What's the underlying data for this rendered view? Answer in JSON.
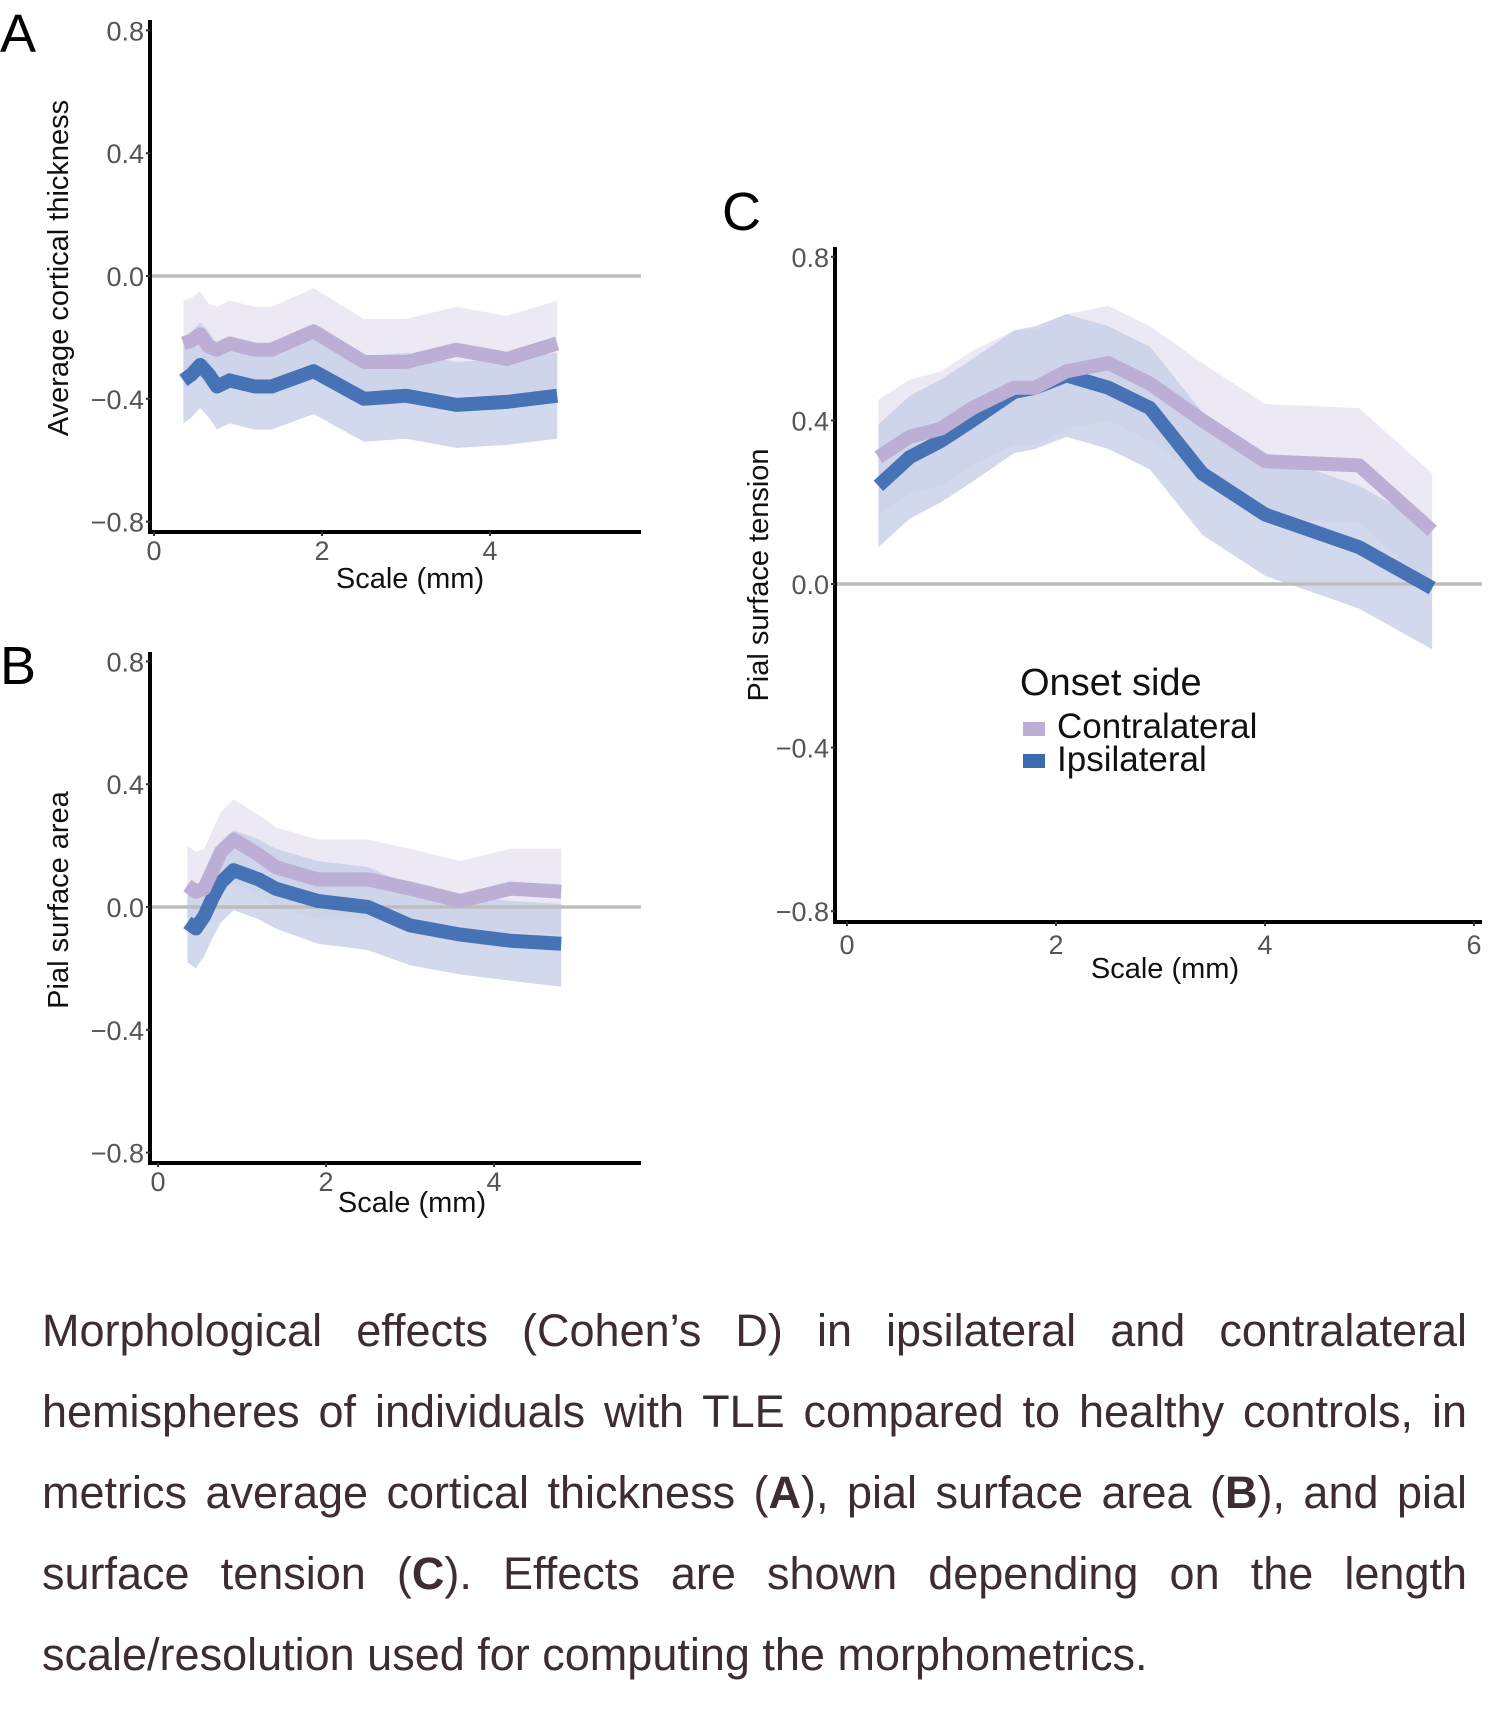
{
  "legend": {
    "title": "Onset side",
    "items": [
      {
        "label": "Contralateral",
        "color": "#bcaed4"
      },
      {
        "label": "Ipsilateral",
        "color": "#3a6ab0"
      }
    ]
  },
  "colors": {
    "contralateral_line": "#bcaed4",
    "ipsilateral_line": "#3a6ab0",
    "contralateral_band": "#e9e5f3",
    "ipsilateral_band": "#c4cce6",
    "zero_line": "#bdbdbd",
    "axis": "#000000"
  },
  "caption": {
    "parts": [
      {
        "text": "Morphological effects (Cohen’s D) in ipsilateral and contralateral hemispheres of individuals with TLE compared to healthy controls, in metrics average cortical thickness (",
        "bold": false
      },
      {
        "text": "A",
        "bold": true
      },
      {
        "text": "), pial surface area (",
        "bold": false
      },
      {
        "text": "B",
        "bold": true
      },
      {
        "text": "), and pial surface tension (",
        "bold": false
      },
      {
        "text": "C",
        "bold": true
      },
      {
        "text": "). Effects are shown depending on the length scale/resolution used for computing  the morphometrics.",
        "bold": false
      }
    ]
  },
  "chart_data": [
    {
      "panel": "A",
      "type": "line",
      "title": "",
      "xlabel": "Scale (mm)",
      "ylabel": "Average cortical thickness",
      "xlim": [
        0,
        5.7
      ],
      "ylim": [
        -0.8,
        0.8
      ],
      "xticks": [
        0,
        2,
        4
      ],
      "xtick_labels": [
        "0",
        "2",
        "4"
      ],
      "yticks": [
        0.8,
        0.4,
        0.0,
        -0.4,
        -0.8
      ],
      "ytick_labels": [
        "0.8",
        "0.4",
        "0.0",
        "−0.4",
        "−0.8"
      ],
      "reference_line": 0.0,
      "grid": false,
      "x": [
        0.35,
        0.45,
        0.55,
        0.65,
        0.75,
        0.9,
        1.2,
        1.4,
        1.9,
        2.5,
        3.0,
        3.6,
        4.2,
        4.8
      ],
      "series": [
        {
          "name": "Contralateral",
          "values": [
            -0.22,
            -0.21,
            -0.19,
            -0.23,
            -0.24,
            -0.22,
            -0.24,
            -0.24,
            -0.18,
            -0.28,
            -0.28,
            -0.24,
            -0.27,
            -0.22
          ],
          "lower": [
            -0.36,
            -0.35,
            -0.33,
            -0.37,
            -0.38,
            -0.36,
            -0.38,
            -0.38,
            -0.32,
            -0.42,
            -0.42,
            -0.38,
            -0.41,
            -0.36
          ],
          "upper": [
            -0.08,
            -0.07,
            -0.05,
            -0.09,
            -0.1,
            -0.08,
            -0.1,
            -0.1,
            -0.04,
            -0.14,
            -0.14,
            -0.1,
            -0.13,
            -0.08
          ]
        },
        {
          "name": "Ipsilateral",
          "values": [
            -0.34,
            -0.32,
            -0.29,
            -0.32,
            -0.36,
            -0.34,
            -0.36,
            -0.36,
            -0.31,
            -0.4,
            -0.39,
            -0.42,
            -0.41,
            -0.39
          ],
          "lower": [
            -0.48,
            -0.46,
            -0.43,
            -0.46,
            -0.5,
            -0.48,
            -0.5,
            -0.5,
            -0.45,
            -0.54,
            -0.53,
            -0.56,
            -0.55,
            -0.53
          ],
          "upper": [
            -0.2,
            -0.18,
            -0.15,
            -0.18,
            -0.22,
            -0.2,
            -0.22,
            -0.22,
            -0.17,
            -0.26,
            -0.25,
            -0.28,
            -0.27,
            -0.25
          ]
        }
      ]
    },
    {
      "panel": "B",
      "type": "line",
      "title": "",
      "xlabel": "Scale (mm)",
      "ylabel": "Pial surface area",
      "xlim": [
        0,
        5.7
      ],
      "ylim": [
        -0.8,
        0.8
      ],
      "xticks": [
        0,
        2,
        4
      ],
      "xtick_labels": [
        "0",
        "2",
        "4"
      ],
      "yticks": [
        0.8,
        0.4,
        0.0,
        -0.4,
        -0.8
      ],
      "ytick_labels": [
        "0.8",
        "0.4",
        "0.0",
        "−0.4",
        "−0.8"
      ],
      "reference_line": 0.0,
      "grid": false,
      "x": [
        0.35,
        0.45,
        0.55,
        0.65,
        0.75,
        0.9,
        1.2,
        1.4,
        1.9,
        2.5,
        3.0,
        3.6,
        4.2,
        4.8
      ],
      "series": [
        {
          "name": "Contralateral",
          "values": [
            0.07,
            0.05,
            0.06,
            0.12,
            0.18,
            0.22,
            0.17,
            0.13,
            0.09,
            0.09,
            0.06,
            0.02,
            0.06,
            0.05
          ],
          "lower": [
            -0.06,
            -0.08,
            -0.07,
            -0.01,
            0.05,
            0.08,
            0.04,
            0.0,
            -0.04,
            -0.04,
            -0.07,
            -0.11,
            -0.08,
            -0.09
          ],
          "upper": [
            0.2,
            0.18,
            0.19,
            0.25,
            0.31,
            0.35,
            0.3,
            0.26,
            0.22,
            0.22,
            0.19,
            0.15,
            0.19,
            0.19
          ]
        },
        {
          "name": "Ipsilateral",
          "values": [
            -0.05,
            -0.07,
            -0.03,
            0.03,
            0.08,
            0.12,
            0.09,
            0.06,
            0.02,
            0.0,
            -0.06,
            -0.09,
            -0.11,
            -0.12
          ],
          "lower": [
            -0.18,
            -0.2,
            -0.16,
            -0.1,
            -0.05,
            -0.01,
            -0.04,
            -0.07,
            -0.12,
            -0.14,
            -0.19,
            -0.22,
            -0.24,
            -0.26
          ],
          "upper": [
            0.08,
            0.06,
            0.1,
            0.16,
            0.21,
            0.25,
            0.22,
            0.19,
            0.15,
            0.13,
            0.07,
            0.04,
            0.02,
            0.01
          ]
        }
      ]
    },
    {
      "panel": "C",
      "type": "line",
      "title": "",
      "xlabel": "Scale (mm)",
      "ylabel": "Pial surface tension",
      "xlim": [
        0,
        6.1
      ],
      "ylim": [
        -0.8,
        0.8
      ],
      "xticks": [
        0,
        2,
        4,
        6
      ],
      "xtick_labels": [
        "0",
        "2",
        "4",
        "6"
      ],
      "yticks": [
        0.8,
        0.4,
        0.0,
        -0.4,
        -0.8
      ],
      "ytick_labels": [
        "0.8",
        "0.4",
        "0.0",
        "−0.4",
        "−0.8"
      ],
      "reference_line": 0.0,
      "grid": false,
      "legend_position": "center-right",
      "x": [
        0.3,
        0.6,
        0.9,
        1.2,
        1.6,
        1.8,
        2.1,
        2.5,
        2.9,
        3.4,
        4.0,
        4.9,
        5.6
      ],
      "series": [
        {
          "name": "Contralateral",
          "values": [
            0.31,
            0.36,
            0.38,
            0.43,
            0.48,
            0.48,
            0.52,
            0.54,
            0.49,
            0.4,
            0.3,
            0.29,
            0.13
          ],
          "lower": [
            0.17,
            0.22,
            0.24,
            0.29,
            0.34,
            0.34,
            0.38,
            0.4,
            0.35,
            0.26,
            0.16,
            0.15,
            -0.01
          ],
          "upper": [
            0.45,
            0.5,
            0.52,
            0.57,
            0.62,
            0.62,
            0.66,
            0.68,
            0.63,
            0.54,
            0.44,
            0.43,
            0.27
          ]
        },
        {
          "name": "Ipsilateral",
          "values": [
            0.24,
            0.31,
            0.35,
            0.4,
            0.47,
            0.48,
            0.51,
            0.48,
            0.43,
            0.27,
            0.17,
            0.09,
            -0.01
          ],
          "lower": [
            0.09,
            0.16,
            0.2,
            0.25,
            0.32,
            0.33,
            0.36,
            0.33,
            0.28,
            0.12,
            0.02,
            -0.06,
            -0.16
          ],
          "upper": [
            0.39,
            0.46,
            0.5,
            0.55,
            0.62,
            0.63,
            0.66,
            0.63,
            0.58,
            0.42,
            0.32,
            0.24,
            0.14
          ]
        }
      ]
    }
  ]
}
